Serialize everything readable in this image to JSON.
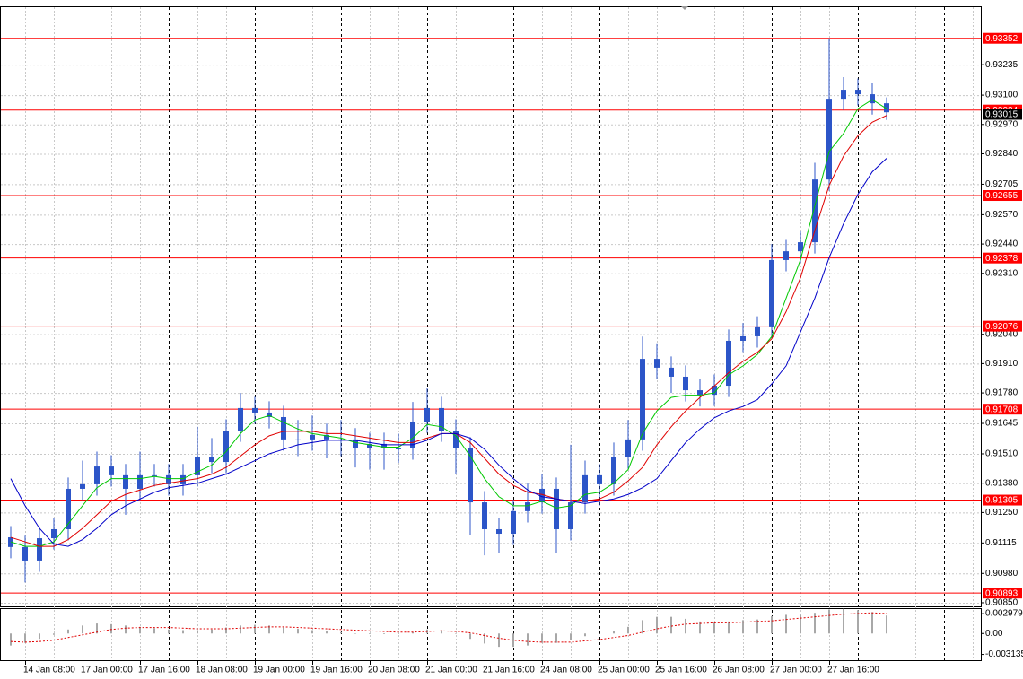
{
  "chart_data": [
    {
      "type": "candlestick",
      "categories": [
        null,
        "14 Jan 08:00",
        null,
        null,
        null,
        "17 Jan 00:00",
        null,
        null,
        null,
        "17 Jan 16:00",
        null,
        null,
        null,
        "18 Jan 08:00",
        null,
        null,
        null,
        "19 Jan 00:00",
        null,
        null,
        null,
        "19 Jan 16:00",
        null,
        null,
        null,
        "20 Jan 08:00",
        null,
        null,
        null,
        "21 Jan 00:00",
        null,
        null,
        null,
        "21 Jan 16:00",
        null,
        null,
        null,
        "24 Jan 08:00",
        null,
        null,
        null,
        "25 Jan 00:00",
        null,
        null,
        null,
        "25 Jan 16:00",
        null,
        null,
        null,
        "26 Jan 08:00",
        null,
        null,
        null,
        "27 Jan 00:00",
        null,
        null,
        null,
        "27 Jan 16:00",
        null,
        null,
        null,
        null
      ],
      "open": [
        0.9114,
        0.91097,
        0.91037,
        0.91136,
        0.91176,
        0.91355,
        0.91375,
        0.91454,
        0.91415,
        0.91355,
        0.91415,
        0.91415,
        0.91375,
        0.91415,
        0.91494,
        0.91474,
        0.91613,
        0.91713,
        0.91693,
        0.91673,
        0.91574,
        0.91574,
        0.91594,
        0.91574,
        0.91574,
        0.91534,
        0.91554,
        0.91534,
        0.91534,
        0.91653,
        0.91713,
        0.91613,
        0.91534,
        0.91295,
        0.91176,
        0.91156,
        0.91256,
        0.91295,
        0.91355,
        0.91176,
        0.91295,
        0.91415,
        0.91375,
        0.91494,
        0.91574,
        0.91931,
        0.91892,
        0.91852,
        0.91792,
        0.91772,
        0.91812,
        0.92011,
        0.92031,
        0.92071,
        0.92369,
        0.92408,
        0.92448,
        0.92726,
        0.93084,
        0.93124,
        0.93104,
        0.93064
      ],
      "high": [
        0.9119,
        0.91147,
        0.91186,
        0.91226,
        0.91405,
        0.9148,
        0.9152,
        0.91504,
        0.91465,
        0.9152,
        0.91465,
        0.91465,
        0.91465,
        0.9163,
        0.9158,
        0.91663,
        0.9178,
        0.91763,
        0.91743,
        0.91723,
        0.9166,
        0.9168,
        0.91644,
        0.9166,
        0.91624,
        0.91604,
        0.91604,
        0.916,
        0.9174,
        0.918,
        0.91763,
        0.91663,
        0.91584,
        0.91345,
        0.91226,
        0.91306,
        0.9138,
        0.9142,
        0.91405,
        0.9155,
        0.9148,
        0.91465,
        0.9156,
        0.9166,
        0.9203,
        0.92,
        0.91942,
        0.91902,
        0.91842,
        0.91862,
        0.92061,
        0.9209,
        0.9212,
        0.9244,
        0.92458,
        0.92498,
        0.928,
        0.93352,
        0.9318,
        0.93174,
        0.93154,
        0.9309
      ],
      "low": [
        0.91047,
        0.9094,
        0.90987,
        0.91086,
        0.91126,
        0.91305,
        0.91325,
        0.91365,
        0.9124,
        0.91305,
        0.91365,
        0.91325,
        0.91325,
        0.91365,
        0.91424,
        0.91424,
        0.91563,
        0.91643,
        0.91623,
        0.91524,
        0.915,
        0.91524,
        0.9149,
        0.915,
        0.9145,
        0.9144,
        0.9144,
        0.9147,
        0.91484,
        0.91603,
        0.91563,
        0.9142,
        0.9115,
        0.9106,
        0.9107,
        0.91106,
        0.91206,
        0.91245,
        0.9107,
        0.91126,
        0.91245,
        0.9128,
        0.91325,
        0.91444,
        0.91524,
        0.91842,
        0.9178,
        0.91742,
        0.9172,
        0.91722,
        0.91762,
        0.91961,
        0.91981,
        0.92021,
        0.92319,
        0.92358,
        0.92398,
        0.92676,
        0.93034,
        0.93054,
        0.93014,
        0.9299
      ],
      "close": [
        0.91097,
        0.91037,
        0.91136,
        0.91176,
        0.91355,
        0.91375,
        0.91454,
        0.91415,
        0.91355,
        0.91415,
        0.91415,
        0.91375,
        0.91415,
        0.91494,
        0.91474,
        0.91613,
        0.91713,
        0.91693,
        0.91673,
        0.91574,
        0.91574,
        0.91594,
        0.91574,
        0.91574,
        0.91534,
        0.91554,
        0.91534,
        0.91534,
        0.91653,
        0.91713,
        0.91613,
        0.91534,
        0.91295,
        0.91176,
        0.91156,
        0.91256,
        0.91295,
        0.91355,
        0.91176,
        0.91295,
        0.91415,
        0.91375,
        0.91494,
        0.91574,
        0.91931,
        0.91892,
        0.91852,
        0.91792,
        0.91772,
        0.91812,
        0.92011,
        0.92031,
        0.92071,
        0.92369,
        0.92408,
        0.92448,
        0.92726,
        0.93084,
        0.93124,
        0.93104,
        0.93064,
        0.93024
      ],
      "color": "#2c55c8",
      "moving_averages": [
        {
          "color": "#00c800",
          "values": [
            0.9112,
            0.911,
            0.911,
            0.9112,
            0.912,
            0.9128,
            0.9136,
            0.914,
            0.914,
            0.914,
            0.9141,
            0.914,
            0.914,
            0.9143,
            0.9146,
            0.9152,
            0.916,
            0.9166,
            0.9168,
            0.9165,
            0.9162,
            0.916,
            0.9159,
            0.9158,
            0.9156,
            0.9155,
            0.9154,
            0.9154,
            0.9158,
            0.9164,
            0.9163,
            0.9159,
            0.915,
            0.914,
            0.9132,
            0.9128,
            0.9128,
            0.913,
            0.9127,
            0.9128,
            0.9133,
            0.9134,
            0.9138,
            0.9144,
            0.916,
            0.917,
            0.9176,
            0.9177,
            0.9177,
            0.9178,
            0.9186,
            0.919,
            0.9195,
            0.9203,
            0.922,
            0.9237,
            0.9261,
            0.9285,
            0.9293,
            0.9304,
            0.9308,
            0.9304
          ]
        },
        {
          "color": "#e00000",
          "values": [
            0.9114,
            0.9112,
            0.911,
            0.911,
            0.9113,
            0.9118,
            0.9124,
            0.913,
            0.9133,
            0.9135,
            0.9137,
            0.9138,
            0.9139,
            0.914,
            0.9142,
            0.9145,
            0.915,
            0.9155,
            0.9159,
            0.9161,
            0.9161,
            0.9161,
            0.916,
            0.916,
            0.9159,
            0.9158,
            0.9157,
            0.9156,
            0.9156,
            0.9158,
            0.916,
            0.916,
            0.9156,
            0.9149,
            0.9142,
            0.9137,
            0.9134,
            0.9133,
            0.9131,
            0.913,
            0.913,
            0.9131,
            0.9134,
            0.9139,
            0.9145,
            0.9155,
            0.9163,
            0.917,
            0.9176,
            0.9181,
            0.9187,
            0.9192,
            0.9196,
            0.9202,
            0.9214,
            0.9229,
            0.925,
            0.927,
            0.9283,
            0.9292,
            0.9298,
            0.9301
          ]
        },
        {
          "color": "#0000c8",
          "values": [
            0.914,
            0.9128,
            0.9118,
            0.9111,
            0.911,
            0.9113,
            0.9118,
            0.9124,
            0.9128,
            0.9131,
            0.9134,
            0.9136,
            0.9137,
            0.9138,
            0.914,
            0.9142,
            0.9145,
            0.9148,
            0.9151,
            0.9153,
            0.9155,
            0.9156,
            0.9157,
            0.9157,
            0.9157,
            0.9156,
            0.9155,
            0.9155,
            0.9155,
            0.9157,
            0.916,
            0.916,
            0.9158,
            0.9153,
            0.9146,
            0.914,
            0.9135,
            0.9132,
            0.9131,
            0.913,
            0.9129,
            0.913,
            0.9131,
            0.9133,
            0.9136,
            0.914,
            0.9148,
            0.9156,
            0.9162,
            0.9167,
            0.917,
            0.9172,
            0.9175,
            0.9182,
            0.919,
            0.9205,
            0.922,
            0.9238,
            0.9253,
            0.9266,
            0.9276,
            0.9282
          ]
        }
      ],
      "levels": [
        0.93352,
        0.93034,
        0.92655,
        0.92378,
        0.92076,
        0.91708,
        0.91305,
        0.90893
      ],
      "level_color": "#ff0000",
      "current_price": 0.93015,
      "ylim": [
        0.90834,
        0.93494
      ],
      "yticks": [
        0.93235,
        {
          "value": 0.931,
          "label": "0.93100"
        },
        {
          "value": 0.9297,
          "label": "0.92970"
        },
        {
          "value": 0.9284,
          "label": "0.92840"
        },
        0.92705,
        {
          "value": 0.9257,
          "label": "0.92570"
        },
        {
          "value": 0.9244,
          "label": "0.92440"
        },
        {
          "value": 0.9231,
          "label": "0.92310"
        },
        {
          "value": 0.9204,
          "label": "0.92040"
        },
        {
          "value": 0.9191,
          "label": "0.91910"
        },
        {
          "value": 0.9178,
          "label": "0.91780"
        },
        0.91645,
        {
          "value": 0.9151,
          "label": "0.91510"
        },
        {
          "value": 0.9138,
          "label": "0.91380"
        },
        {
          "value": 0.9125,
          "label": "0.91250"
        },
        0.91115,
        {
          "value": 0.9098,
          "label": "0.90980"
        },
        {
          "value": 0.9085,
          "label": "0.90850"
        }
      ],
      "grid": true
    },
    {
      "type": "macd",
      "values": [
        -0.0018,
        -0.0014,
        -0.0008,
        -0.0002,
        0.0006,
        0.0012,
        0.0015,
        0.0014,
        0.0012,
        0.001,
        0.0008,
        0.0006,
        0.0005,
        0.0005,
        0.0006,
        0.0009,
        0.0012,
        0.0013,
        0.0012,
        0.0009,
        0.0007,
        0.0005,
        0.0003,
        0.0002,
        0,
        -0.0001,
        -0.0001,
        -0.0001,
        0.0002,
        0.0006,
        0.0005,
        0,
        -0.0008,
        -0.0015,
        -0.002,
        -0.002,
        -0.0018,
        -0.0014,
        -0.0014,
        -0.001,
        -0.0004,
        0,
        0.0004,
        0.001,
        0.002,
        0.0025,
        0.0025,
        0.0022,
        0.0018,
        0.0016,
        0.0018,
        0.002,
        0.0021,
        0.0026,
        0.0028,
        0.0028,
        0.0031,
        0.0036,
        0.0037,
        0.0035,
        0.0032,
        0.0027
      ],
      "signal": [
        -0.0012,
        -0.0013,
        -0.0012,
        -0.001,
        -0.0006,
        -0.0002,
        0.0002,
        0.0006,
        0.0008,
        0.0009,
        0.0009,
        0.0009,
        0.0008,
        0.0007,
        0.0007,
        0.0007,
        0.0008,
        0.0009,
        0.001,
        0.001,
        0.0009,
        0.0008,
        0.0007,
        0.0006,
        0.0005,
        0.0004,
        0.0003,
        0.0002,
        0.0002,
        0.0003,
        0.0004,
        0.0003,
        0.0001,
        -0.0003,
        -0.0007,
        -0.001,
        -0.0012,
        -0.0013,
        -0.0013,
        -0.0013,
        -0.0011,
        -0.0009,
        -0.0006,
        -0.0003,
        0.0002,
        0.0007,
        0.0011,
        0.0014,
        0.0015,
        0.0016,
        0.0016,
        0.0017,
        0.0018,
        0.0019,
        0.0021,
        0.0023,
        0.0025,
        0.0027,
        0.0029,
        0.003,
        0.0031,
        0.003
      ],
      "color": "#a8a8a8",
      "signal_color": "#e00000",
      "ylim": [
        -0.004,
        0.0038
      ],
      "yticks": [
        0.002979,
        {
          "value": 0,
          "label": "0.00"
        },
        -0.003135
      ]
    }
  ]
}
